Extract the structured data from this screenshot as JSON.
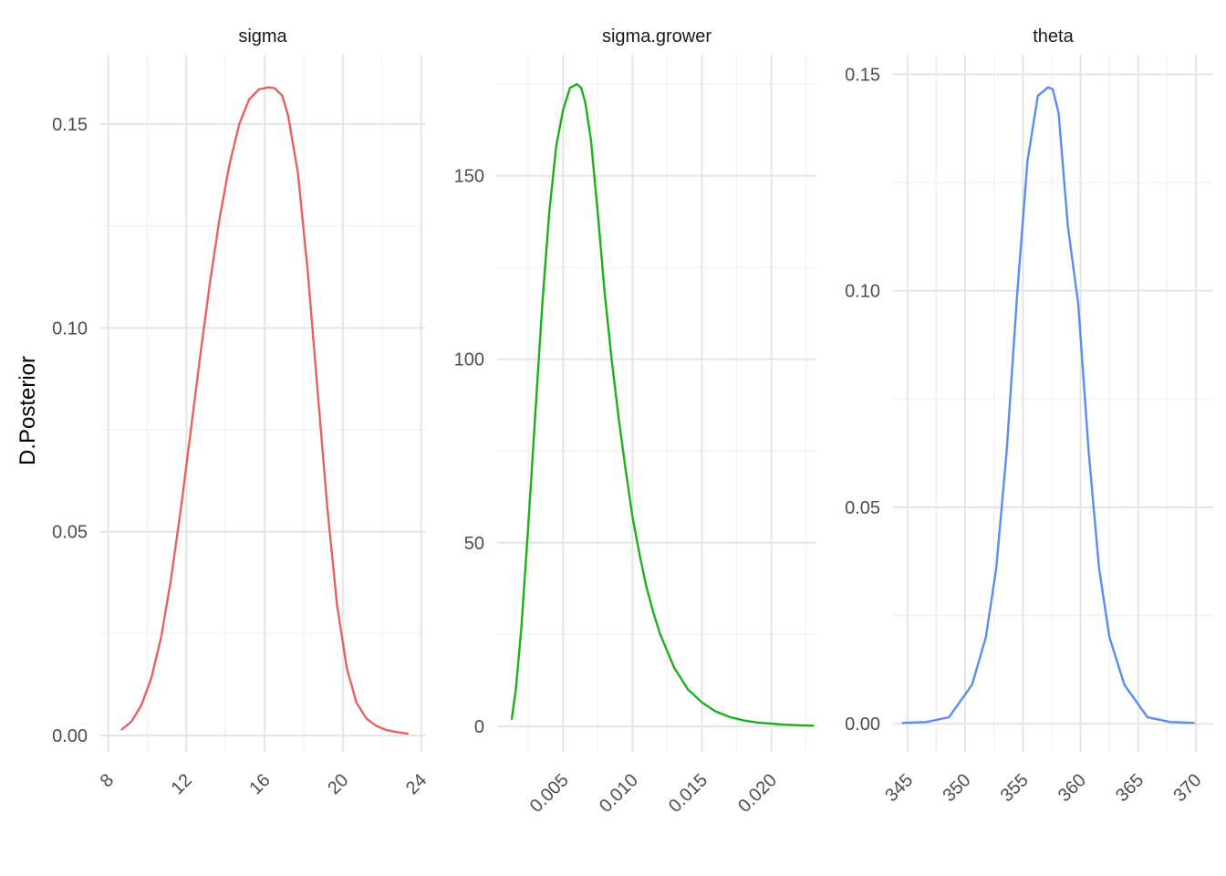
{
  "chart_data": {
    "type": "line",
    "ylabel": "D.Posterior",
    "xlabel": "",
    "panels": [
      {
        "title": "sigma",
        "color": "#E8615F",
        "xlim": [
          7.6,
          24.2
        ],
        "ylim": [
          -0.004,
          0.167
        ],
        "x_major_ticks": [
          8,
          12,
          16,
          20,
          24
        ],
        "x_tick_labels": [
          "8",
          "12",
          "16",
          "20",
          "24"
        ],
        "y_major_ticks": [
          0.0,
          0.05,
          0.1,
          0.15
        ],
        "y_tick_labels": [
          "0.00",
          "0.05",
          "0.10",
          "0.15"
        ],
        "x": [
          8.7,
          9.2,
          9.7,
          10.2,
          10.7,
          11.2,
          11.7,
          12.2,
          12.7,
          13.2,
          13.7,
          14.2,
          14.7,
          15.2,
          15.7,
          16.2,
          16.5,
          16.9,
          17.2,
          17.7,
          18.2,
          18.7,
          19.2,
          19.7,
          20.2,
          20.7,
          21.2,
          21.7,
          22.2,
          22.7,
          23.3
        ],
        "y": [
          0.0015,
          0.0035,
          0.0075,
          0.014,
          0.024,
          0.038,
          0.055,
          0.074,
          0.093,
          0.111,
          0.127,
          0.14,
          0.15,
          0.156,
          0.1585,
          0.159,
          0.1588,
          0.157,
          0.152,
          0.138,
          0.114,
          0.085,
          0.056,
          0.032,
          0.0165,
          0.008,
          0.0042,
          0.0024,
          0.0014,
          0.0009,
          0.0005
        ]
      },
      {
        "title": "sigma.grower",
        "color": "#1DB01D",
        "xlim": [
          0.00025,
          0.02325
        ],
        "ylim": [
          -7,
          183
        ],
        "x_major_ticks": [
          0.005,
          0.01,
          0.015,
          0.02
        ],
        "x_tick_labels": [
          "0.005",
          "0.010",
          "0.015",
          "0.020"
        ],
        "y_major_ticks": [
          0,
          50,
          100,
          150
        ],
        "y_tick_labels": [
          "0",
          "50",
          "100",
          "150"
        ],
        "x": [
          0.0013,
          0.0016,
          0.002,
          0.0025,
          0.003,
          0.0035,
          0.004,
          0.0045,
          0.005,
          0.0055,
          0.006,
          0.0063,
          0.0066,
          0.007,
          0.0075,
          0.008,
          0.0085,
          0.009,
          0.0095,
          0.01,
          0.0105,
          0.011,
          0.0115,
          0.012,
          0.013,
          0.014,
          0.015,
          0.016,
          0.017,
          0.018,
          0.019,
          0.02,
          0.021,
          0.022,
          0.023
        ],
        "y": [
          2,
          10,
          27,
          55,
          85,
          115,
          140,
          158,
          168,
          174,
          175,
          174,
          170,
          160,
          140,
          118,
          100,
          84,
          70,
          57,
          47,
          38,
          31,
          25,
          16,
          10,
          6.5,
          4,
          2.5,
          1.6,
          1.0,
          0.7,
          0.4,
          0.25,
          0.15
        ]
      },
      {
        "title": "theta",
        "color": "#5B8CF0",
        "xlim": [
          343.75,
          371.5
        ],
        "ylim": [
          -0.0065,
          0.1545
        ],
        "x_major_ticks": [
          345,
          350,
          355,
          360,
          365,
          370
        ],
        "x_tick_labels": [
          "345",
          "350",
          "355",
          "360",
          "365",
          "370"
        ],
        "y_major_ticks": [
          0.0,
          0.05,
          0.1,
          0.15
        ],
        "y_tick_labels": [
          "0.00",
          "0.05",
          "0.10",
          "0.15"
        ],
        "x": [
          344.6,
          346.6,
          348.6,
          350.6,
          351.8,
          352.7,
          353.6,
          354.5,
          355.4,
          356.3,
          357.2,
          357.6,
          358.1,
          358.9,
          359.8,
          360.7,
          361.6,
          362.5,
          363.8,
          365.8,
          367.8,
          369.8
        ],
        "y": [
          0.0002,
          0.0004,
          0.0015,
          0.009,
          0.02,
          0.036,
          0.063,
          0.099,
          0.13,
          0.145,
          0.147,
          0.1465,
          0.141,
          0.115,
          0.097,
          0.063,
          0.036,
          0.02,
          0.009,
          0.0015,
          0.0004,
          0.0002
        ]
      }
    ]
  }
}
